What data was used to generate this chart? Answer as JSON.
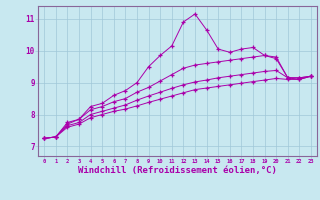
{
  "background_color": "#c8e8f0",
  "grid_color": "#a0c8d8",
  "line_color": "#aa00aa",
  "marker": "+",
  "xlabel": "Windchill (Refroidissement éolien,°C)",
  "xlabel_fontsize": 6.5,
  "xtick_labels": [
    "0",
    "1",
    "2",
    "3",
    "4",
    "5",
    "6",
    "7",
    "8",
    "9",
    "10",
    "11",
    "12",
    "13",
    "14",
    "15",
    "16",
    "17",
    "18",
    "19",
    "20",
    "21",
    "22",
    "23"
  ],
  "ytick_labels": [
    "7",
    "8",
    "9",
    "10",
    "11"
  ],
  "ylim": [
    6.7,
    11.4
  ],
  "xlim": [
    -0.5,
    23.5
  ],
  "series": [
    [
      7.25,
      7.3,
      7.75,
      7.85,
      8.25,
      8.35,
      8.6,
      8.75,
      9.0,
      9.5,
      9.85,
      10.15,
      10.9,
      11.15,
      10.65,
      10.05,
      9.95,
      10.05,
      10.1,
      9.85,
      9.75,
      9.15,
      9.15,
      9.2
    ],
    [
      7.25,
      7.3,
      7.7,
      7.85,
      8.15,
      8.25,
      8.4,
      8.5,
      8.7,
      8.85,
      9.05,
      9.25,
      9.45,
      9.55,
      9.6,
      9.65,
      9.7,
      9.75,
      9.8,
      9.85,
      9.8,
      9.15,
      9.15,
      9.2
    ],
    [
      7.25,
      7.3,
      7.65,
      7.75,
      8.0,
      8.1,
      8.2,
      8.3,
      8.45,
      8.58,
      8.7,
      8.82,
      8.93,
      9.02,
      9.08,
      9.15,
      9.2,
      9.25,
      9.3,
      9.35,
      9.38,
      9.15,
      9.1,
      9.2
    ],
    [
      7.25,
      7.3,
      7.6,
      7.7,
      7.9,
      8.0,
      8.1,
      8.17,
      8.27,
      8.38,
      8.48,
      8.58,
      8.68,
      8.78,
      8.83,
      8.88,
      8.93,
      8.98,
      9.03,
      9.08,
      9.13,
      9.1,
      9.1,
      9.2
    ]
  ]
}
